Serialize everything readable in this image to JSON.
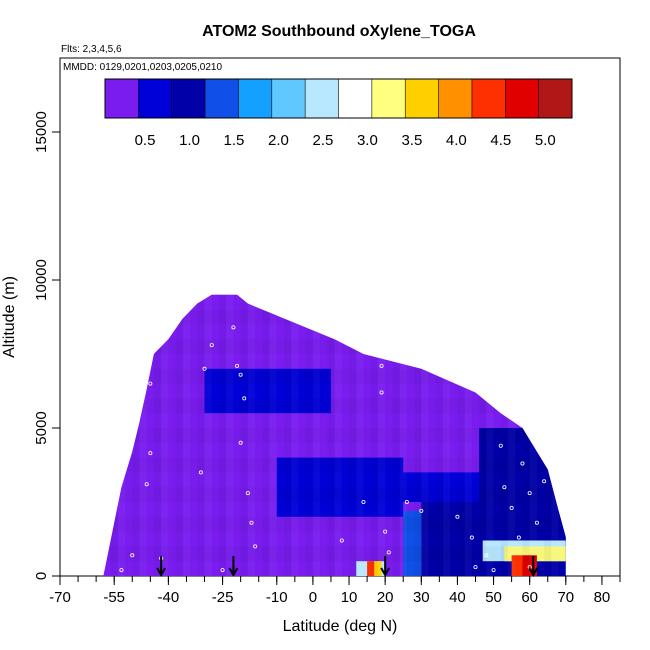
{
  "chart_data": {
    "type": "heatmap",
    "title": "ATOM2 Southbound oXylene_TOGA",
    "subtitle_flights": "Flts: 2,3,4,5,6",
    "subtitle_dates": "MMDD: 0129,0201,0203,0205,0210",
    "xlabel": "Latitude (deg N)",
    "ylabel": "Altitude (m)",
    "xlim": [
      -70,
      85
    ],
    "ylim": [
      0,
      17500
    ],
    "x_ticks": [
      "-70",
      "-55",
      "-40",
      "-25",
      "-10",
      "0",
      "10",
      "20",
      "30",
      "40",
      "50",
      "60",
      "70",
      "80"
    ],
    "x_tick_values": [
      -70,
      -55,
      -40,
      -25,
      -10,
      0,
      10,
      20,
      30,
      40,
      50,
      60,
      70,
      80
    ],
    "x_minor_step": 5,
    "y_ticks": [
      "0",
      "5000",
      "10000",
      "15000"
    ],
    "y_tick_values": [
      0,
      5000,
      10000,
      15000
    ],
    "colorbar": {
      "min": 0.05,
      "max": 5.3,
      "tick_labels": [
        "0.5",
        "1.0",
        "1.5",
        "2.0",
        "2.5",
        "3.0",
        "3.5",
        "4.0",
        "4.5",
        "5.0"
      ],
      "tick_values": [
        0.5,
        1.0,
        1.5,
        2.0,
        2.5,
        3.0,
        3.5,
        4.0,
        4.5,
        5.0
      ],
      "colors": [
        "#7a1cf0",
        "#0000d8",
        "#0000a8",
        "#1050e8",
        "#14a0ff",
        "#60c8ff",
        "#b8e8ff",
        "#ffffff",
        "#ffff80",
        "#ffd000",
        "#ff9000",
        "#ff3000",
        "#e00000",
        "#b01818"
      ]
    },
    "curtain_profile": [
      {
        "lat": -58,
        "top": 0
      },
      {
        "lat": -57,
        "top": 600
      },
      {
        "lat": -55,
        "top": 1800
      },
      {
        "lat": -53,
        "top": 3000
      },
      {
        "lat": -50,
        "top": 4200
      },
      {
        "lat": -48,
        "top": 5200
      },
      {
        "lat": -46,
        "top": 6300
      },
      {
        "lat": -44,
        "top": 7500
      },
      {
        "lat": -40,
        "top": 8000
      },
      {
        "lat": -36,
        "top": 8700
      },
      {
        "lat": -32,
        "top": 9200
      },
      {
        "lat": -28,
        "top": 9500
      },
      {
        "lat": -21,
        "top": 9500
      },
      {
        "lat": -18,
        "top": 9200
      },
      {
        "lat": -8,
        "top": 8700
      },
      {
        "lat": 6,
        "top": 8000
      },
      {
        "lat": 14,
        "top": 7500
      },
      {
        "lat": 30,
        "top": 7000
      },
      {
        "lat": 45,
        "top": 6200
      },
      {
        "lat": 52,
        "top": 5500
      },
      {
        "lat": 58,
        "top": 5000
      },
      {
        "lat": 60,
        "top": 4600
      },
      {
        "lat": 65,
        "top": 3600
      },
      {
        "lat": 68,
        "top": 2200
      },
      {
        "lat": 70,
        "top": 1300
      },
      {
        "lat": 70,
        "top": 0
      }
    ],
    "regions": [
      {
        "lat_from": -58,
        "lat_to": 70,
        "alt_from": 0,
        "alt_to": 10000,
        "value": 0.15
      },
      {
        "lat_from": -48,
        "lat_to": -10,
        "alt_from": 4500,
        "alt_to": 9500,
        "value": 0.3
      },
      {
        "lat_from": -30,
        "lat_to": 5,
        "alt_from": 5500,
        "alt_to": 7000,
        "value": 0.45
      },
      {
        "lat_from": -10,
        "lat_to": 25,
        "alt_from": 2000,
        "alt_to": 4000,
        "value": 0.45
      },
      {
        "lat_from": 20,
        "lat_to": 50,
        "alt_from": 2500,
        "alt_to": 3500,
        "value": 0.5
      },
      {
        "lat_from": 30,
        "lat_to": 56,
        "alt_from": 0,
        "alt_to": 2500,
        "value": 0.9
      },
      {
        "lat_from": 46,
        "lat_to": 70,
        "alt_from": 0,
        "alt_to": 5000,
        "value": 0.85
      },
      {
        "lat_from": 40,
        "lat_to": 70,
        "alt_from": 1000,
        "alt_to": 2200,
        "value": 1.05
      },
      {
        "lat_from": 25,
        "lat_to": 30,
        "alt_from": 0,
        "alt_to": 2200,
        "value": 1.2
      },
      {
        "lat_from": 12,
        "lat_to": 20,
        "alt_from": 0,
        "alt_to": 500,
        "value": 2.6
      },
      {
        "lat_from": 15,
        "lat_to": 17,
        "alt_from": 0,
        "alt_to": 500,
        "value": 4.3
      },
      {
        "lat_from": 17,
        "lat_to": 19,
        "alt_from": 0,
        "alt_to": 500,
        "value": 3.5
      },
      {
        "lat_from": 47,
        "lat_to": 70,
        "alt_from": 500,
        "alt_to": 1200,
        "value": 2.3
      },
      {
        "lat_from": 53,
        "lat_to": 70,
        "alt_from": 500,
        "alt_to": 1000,
        "value": 3.2
      },
      {
        "lat_from": 55,
        "lat_to": 58,
        "alt_from": 0,
        "alt_to": 700,
        "value": 4.2
      },
      {
        "lat_from": 58,
        "lat_to": 62,
        "alt_from": 0,
        "alt_to": 700,
        "value": 4.9
      }
    ],
    "sample_points": [
      [
        -53,
        200
      ],
      [
        -50,
        700
      ],
      [
        -46,
        3100
      ],
      [
        -45,
        4150
      ],
      [
        -45,
        6500
      ],
      [
        -42,
        600
      ],
      [
        -31,
        3500
      ],
      [
        -30,
        7000
      ],
      [
        -28,
        7800
      ],
      [
        -22,
        8400
      ],
      [
        -21,
        7100
      ],
      [
        -20,
        6800
      ],
      [
        -19,
        6000
      ],
      [
        -20,
        4500
      ],
      [
        -18,
        2800
      ],
      [
        -17,
        1800
      ],
      [
        -16,
        1000
      ],
      [
        -25,
        200
      ],
      [
        8,
        1200
      ],
      [
        14,
        2500
      ],
      [
        19,
        7100
      ],
      [
        19,
        6200
      ],
      [
        20,
        1500
      ],
      [
        21,
        800
      ],
      [
        26,
        2500
      ],
      [
        30,
        2200
      ],
      [
        40,
        2000
      ],
      [
        44,
        1300
      ],
      [
        48,
        700
      ],
      [
        52,
        4400
      ],
      [
        53,
        3000
      ],
      [
        55,
        2300
      ],
      [
        57,
        1300
      ],
      [
        58,
        3800
      ],
      [
        60,
        2800
      ],
      [
        62,
        1800
      ],
      [
        63,
        4300
      ],
      [
        64,
        3200
      ],
      [
        60,
        300
      ],
      [
        45,
        300
      ],
      [
        50,
        200
      ]
    ],
    "arrows_lat": [
      -42,
      -22,
      20,
      61
    ]
  }
}
